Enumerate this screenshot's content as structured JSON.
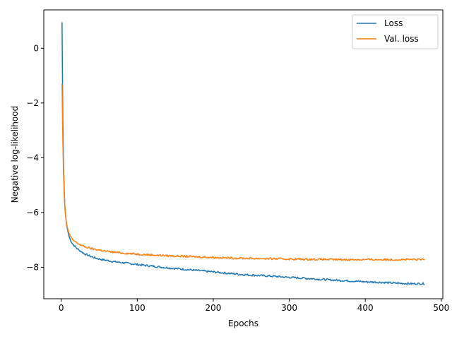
{
  "chart_data": {
    "type": "line",
    "title": "",
    "xlabel": "Epochs",
    "ylabel": "Negative log-likelihood",
    "xlim": [
      -23,
      502
    ],
    "ylim": [
      -9.15,
      1.4
    ],
    "xticks": [
      0,
      100,
      200,
      300,
      400,
      500
    ],
    "xtick_labels": [
      "0",
      "100",
      "200",
      "300",
      "400",
      "500"
    ],
    "yticks": [
      0,
      -2,
      -4,
      -6,
      -8
    ],
    "ytick_labels": [
      "0",
      "−2",
      "−4",
      "−6",
      "−8"
    ],
    "grid": false,
    "legend_position": "top-right",
    "series": [
      {
        "name": "Loss",
        "color": "#1f77b4",
        "x": [
          1,
          2,
          3,
          4,
          5,
          6,
          7,
          8,
          10,
          12,
          15,
          20,
          25,
          30,
          40,
          50,
          60,
          70,
          80,
          100,
          120,
          140,
          160,
          180,
          200,
          220,
          240,
          260,
          280,
          300,
          320,
          340,
          360,
          380,
          400,
          420,
          440,
          460,
          478
        ],
        "y": [
          0.95,
          -2.5,
          -4.2,
          -5.3,
          -5.9,
          -6.2,
          -6.45,
          -6.6,
          -6.85,
          -7.0,
          -7.15,
          -7.3,
          -7.4,
          -7.5,
          -7.62,
          -7.7,
          -7.75,
          -7.8,
          -7.83,
          -7.9,
          -7.96,
          -8.02,
          -8.07,
          -8.12,
          -8.17,
          -8.22,
          -8.27,
          -8.3,
          -8.33,
          -8.37,
          -8.4,
          -8.44,
          -8.47,
          -8.5,
          -8.53,
          -8.55,
          -8.58,
          -8.6,
          -8.6
        ]
      },
      {
        "name": "Val. loss",
        "color": "#ff7f0e",
        "x": [
          1,
          2,
          3,
          4,
          5,
          6,
          7,
          8,
          10,
          12,
          15,
          20,
          25,
          30,
          40,
          50,
          60,
          70,
          80,
          100,
          120,
          140,
          160,
          180,
          200,
          220,
          240,
          260,
          280,
          300,
          320,
          340,
          360,
          380,
          400,
          420,
          440,
          460,
          478
        ],
        "y": [
          -1.3,
          -3.3,
          -4.6,
          -5.4,
          -5.9,
          -6.2,
          -6.4,
          -6.55,
          -6.75,
          -6.88,
          -7.0,
          -7.1,
          -7.18,
          -7.24,
          -7.32,
          -7.37,
          -7.42,
          -7.45,
          -7.48,
          -7.52,
          -7.55,
          -7.58,
          -7.6,
          -7.62,
          -7.64,
          -7.66,
          -7.67,
          -7.68,
          -7.69,
          -7.7,
          -7.71,
          -7.71,
          -7.72,
          -7.72,
          -7.72,
          -7.72,
          -7.72,
          -7.72,
          -7.72
        ]
      }
    ]
  }
}
